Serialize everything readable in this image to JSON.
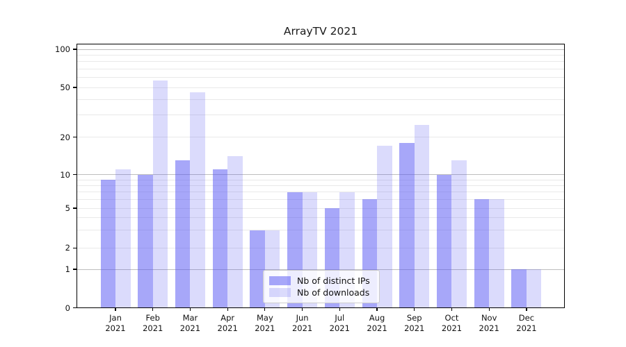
{
  "title": "ArrayTV 2021",
  "chart_data": {
    "type": "bar",
    "title": "ArrayTV 2021",
    "x_months": [
      "Jan",
      "Feb",
      "Mar",
      "Apr",
      "May",
      "Jun",
      "Jul",
      "Aug",
      "Sep",
      "Oct",
      "Nov",
      "Dec"
    ],
    "x_year": "2021",
    "series": [
      {
        "name": "Nb of distinct IPs",
        "values": [
          9,
          10,
          13,
          11,
          3,
          7,
          5,
          6,
          18,
          10,
          6,
          1
        ]
      },
      {
        "name": "Nb of downloads",
        "values": [
          11,
          57,
          46,
          14,
          3,
          7,
          7,
          17,
          25,
          13,
          6,
          1
        ]
      }
    ],
    "yscale": "symlog",
    "ylim": [
      0,
      100
    ],
    "ytick_values": [
      0,
      1,
      2,
      5,
      10,
      20,
      50,
      100
    ],
    "ytick_labels": [
      "0",
      "1",
      "2",
      "5",
      "10",
      "20",
      "50",
      "100"
    ],
    "y_major_gridlines": [
      1,
      10,
      100
    ],
    "y_minor_gridlines": [
      2,
      3,
      4,
      5,
      6,
      7,
      8,
      9,
      20,
      30,
      40,
      50,
      60,
      70,
      80,
      90
    ],
    "grid": "horizontal",
    "legend_position": "lower center"
  },
  "legend": {
    "items": [
      {
        "label": "Nb of distinct IPs"
      },
      {
        "label": "Nb of downloads"
      }
    ]
  },
  "colors": {
    "bar_distinct_ips": "rgba(87,87,243,0.52)",
    "bar_downloads": "rgba(87,87,243,0.21)",
    "bar_distinct_ips_hex": "#a8a8f8",
    "bar_downloads_hex": "#dcdcfa",
    "grid_major": "#bdbdbd",
    "grid_minor": "#e9e9e9",
    "spine": "#000000",
    "legend_border": "#cccccc",
    "text": "#111111"
  }
}
